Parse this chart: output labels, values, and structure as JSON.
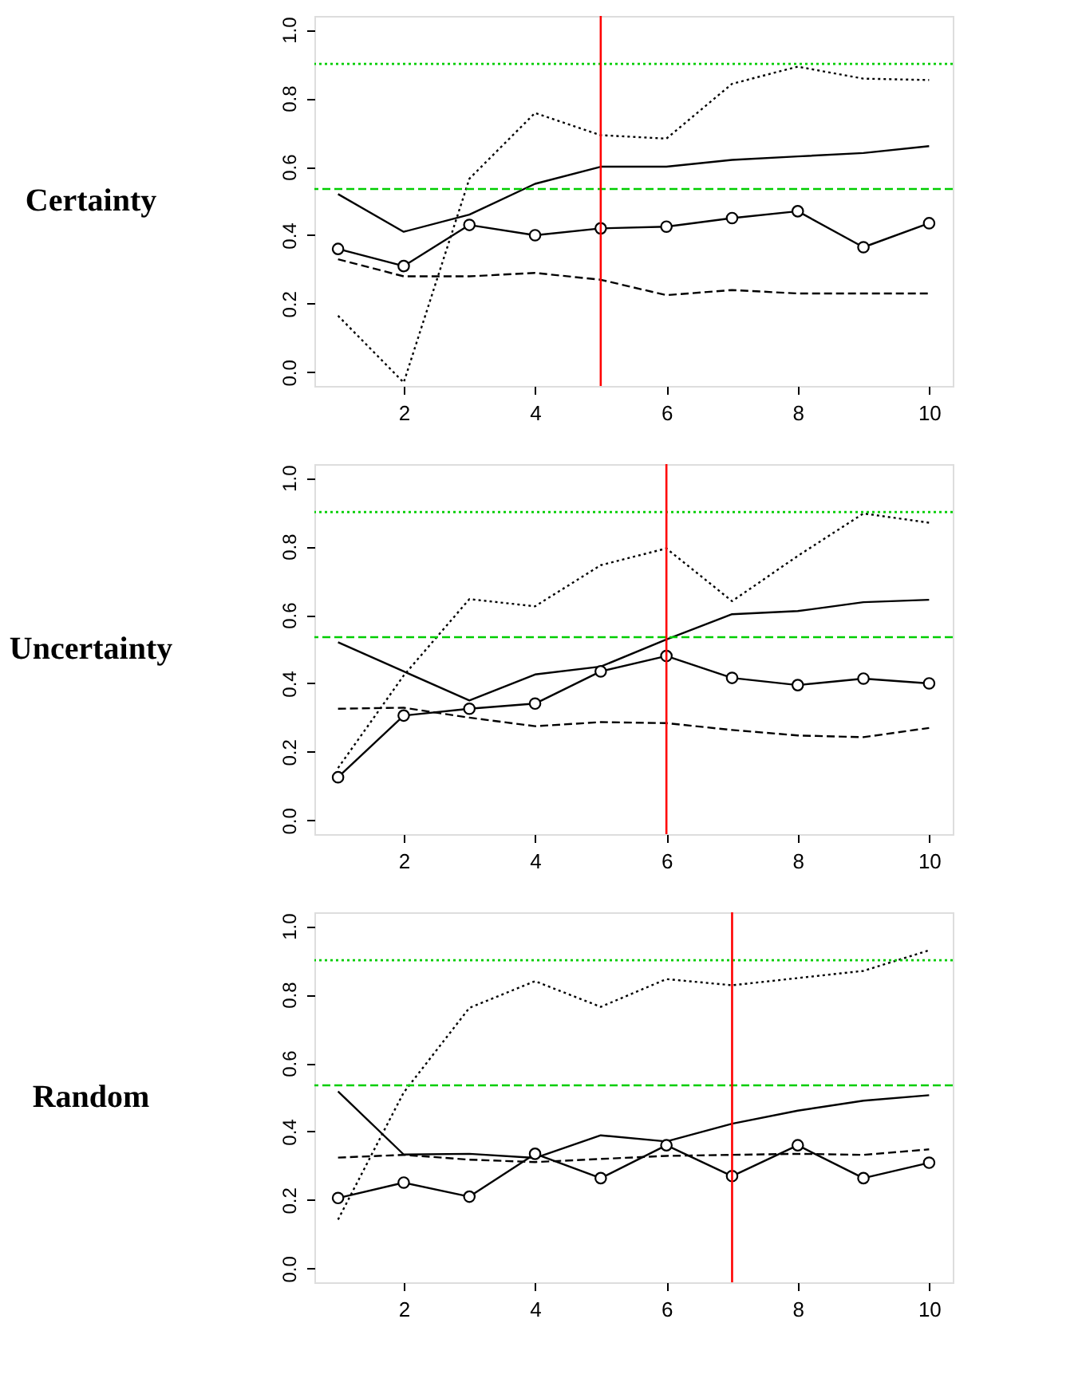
{
  "chart_data": [
    {
      "type": "line",
      "title": "Certainty",
      "x": [
        1,
        2,
        3,
        4,
        5,
        6,
        7,
        8,
        9,
        10
      ],
      "xlim": [
        0.64,
        10.36
      ],
      "ylim": [
        -0.04,
        1.04
      ],
      "xticks": [
        2,
        4,
        6,
        8,
        10
      ],
      "yticks": [
        {
          "value": 0,
          "label": "0.0"
        },
        {
          "value": 0.2,
          "label": "0.2"
        },
        {
          "value": 0.4,
          "label": "0.4"
        },
        {
          "value": 0.6,
          "label": "0.6"
        },
        {
          "value": 0.8,
          "label": "0.8"
        },
        {
          "value": 1,
          "label": "1.0"
        }
      ],
      "grid": false,
      "series": [
        {
          "color": "#000000",
          "line_style": "solid",
          "marker": "none",
          "values": [
            0.52,
            0.41,
            0.46,
            0.55,
            0.6,
            0.6,
            0.62,
            0.63,
            0.64,
            0.66
          ]
        },
        {
          "color": "#000000",
          "line_style": "solid",
          "marker": "circle",
          "values": [
            0.36,
            0.31,
            0.43,
            0.4,
            0.42,
            0.425,
            0.45,
            0.47,
            0.365,
            0.435
          ]
        },
        {
          "color": "#000000",
          "line_style": "dashed",
          "marker": "none",
          "values": [
            0.33,
            0.28,
            0.28,
            0.29,
            0.27,
            0.225,
            0.24,
            0.23,
            0.23,
            0.23
          ]
        },
        {
          "color": "#000000",
          "line_style": "dotted",
          "marker": "none",
          "values": [
            0.165,
            -0.03,
            0.565,
            0.757,
            0.692,
            0.682,
            0.842,
            0.892,
            0.857,
            0.853
          ]
        }
      ],
      "ref_lines": [
        {
          "axis": "y",
          "value": 0.9,
          "color": "#00cd00",
          "line_style": "dotted"
        },
        {
          "axis": "y",
          "value": 0.535,
          "color": "#00cd00",
          "line_style": "dashed"
        },
        {
          "axis": "x",
          "value": 5,
          "color": "#ff0000",
          "line_style": "solid"
        }
      ]
    },
    {
      "type": "line",
      "title": "Uncertainty",
      "x": [
        1,
        2,
        3,
        4,
        5,
        6,
        7,
        8,
        9,
        10
      ],
      "xlim": [
        0.64,
        10.36
      ],
      "ylim": [
        -0.04,
        1.04
      ],
      "xticks": [
        2,
        4,
        6,
        8,
        10
      ],
      "yticks": [
        {
          "value": 0,
          "label": "0.0"
        },
        {
          "value": 0.2,
          "label": "0.2"
        },
        {
          "value": 0.4,
          "label": "0.4"
        },
        {
          "value": 0.6,
          "label": "0.6"
        },
        {
          "value": 0.8,
          "label": "0.8"
        },
        {
          "value": 1,
          "label": "1.0"
        }
      ],
      "grid": false,
      "series": [
        {
          "color": "#000000",
          "line_style": "solid",
          "marker": "none",
          "values": [
            0.52,
            0.435,
            0.35,
            0.426,
            0.449,
            0.528,
            0.602,
            0.611,
            0.637,
            0.644
          ]
        },
        {
          "color": "#000000",
          "line_style": "solid",
          "marker": "circle",
          "values": [
            0.126,
            0.306,
            0.326,
            0.341,
            0.435,
            0.48,
            0.416,
            0.395,
            0.414,
            0.4
          ]
        },
        {
          "color": "#000000",
          "line_style": "dashed",
          "marker": "none",
          "values": [
            0.326,
            0.329,
            0.3,
            0.275,
            0.287,
            0.284,
            0.264,
            0.248,
            0.243,
            0.27
          ]
        },
        {
          "color": "#000000",
          "line_style": "dotted",
          "marker": "none",
          "values": [
            0.153,
            0.423,
            0.646,
            0.625,
            0.745,
            0.794,
            0.64,
            0.772,
            0.896,
            0.869
          ]
        }
      ],
      "ref_lines": [
        {
          "axis": "y",
          "value": 0.9,
          "color": "#00cd00",
          "line_style": "dotted"
        },
        {
          "axis": "y",
          "value": 0.535,
          "color": "#00cd00",
          "line_style": "dashed"
        },
        {
          "axis": "x",
          "value": 6,
          "color": "#ff0000",
          "line_style": "solid"
        }
      ]
    },
    {
      "type": "line",
      "title": "Random",
      "x": [
        1,
        2,
        3,
        4,
        5,
        6,
        7,
        8,
        9,
        10
      ],
      "xlim": [
        0.64,
        10.36
      ],
      "ylim": [
        -0.04,
        1.04
      ],
      "xticks": [
        2,
        4,
        6,
        8,
        10
      ],
      "yticks": [
        {
          "value": 0,
          "label": "0.0"
        },
        {
          "value": 0.2,
          "label": "0.2"
        },
        {
          "value": 0.4,
          "label": "0.4"
        },
        {
          "value": 0.6,
          "label": "0.6"
        },
        {
          "value": 0.8,
          "label": "0.8"
        },
        {
          "value": 1,
          "label": "1.0"
        }
      ],
      "grid": false,
      "series": [
        {
          "color": "#000000",
          "line_style": "solid",
          "marker": "none",
          "values": [
            0.517,
            0.333,
            0.335,
            0.323,
            0.389,
            0.371,
            0.423,
            0.461,
            0.49,
            0.506
          ]
        },
        {
          "color": "#000000",
          "line_style": "solid",
          "marker": "circle",
          "values": [
            0.206,
            0.251,
            0.21,
            0.335,
            0.264,
            0.36,
            0.27,
            0.36,
            0.264,
            0.309
          ]
        },
        {
          "color": "#000000",
          "line_style": "dashed",
          "marker": "none",
          "values": [
            0.324,
            0.332,
            0.318,
            0.311,
            0.32,
            0.329,
            0.332,
            0.335,
            0.332,
            0.348
          ]
        },
        {
          "color": "#000000",
          "line_style": "dotted",
          "marker": "none",
          "values": [
            0.143,
            0.514,
            0.761,
            0.839,
            0.764,
            0.845,
            0.827,
            0.848,
            0.869,
            0.929
          ]
        }
      ],
      "ref_lines": [
        {
          "axis": "y",
          "value": 0.9,
          "color": "#00cd00",
          "line_style": "dotted"
        },
        {
          "axis": "y",
          "value": 0.535,
          "color": "#00cd00",
          "line_style": "dashed"
        },
        {
          "axis": "x",
          "value": 7,
          "color": "#ff0000",
          "line_style": "solid"
        }
      ]
    }
  ]
}
